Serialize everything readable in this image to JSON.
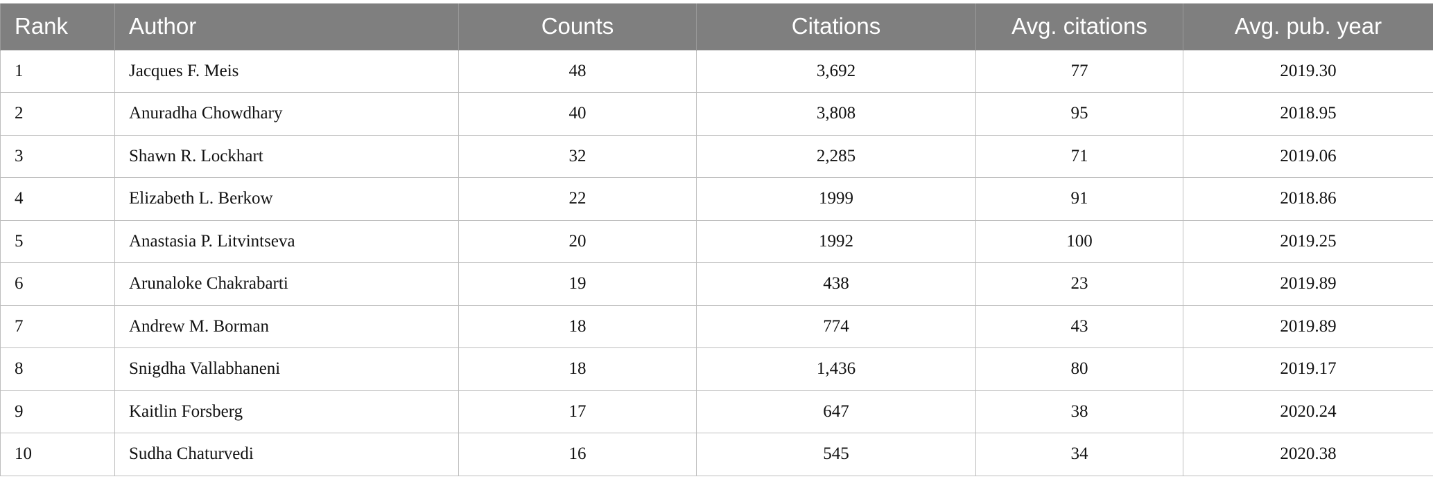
{
  "table": {
    "columns": [
      "Rank",
      "Author",
      "Counts",
      "Citations",
      "Avg. citations",
      "Avg. pub. year"
    ],
    "rows": [
      [
        "1",
        "Jacques F. Meis",
        "48",
        "3,692",
        "77",
        "2019.30"
      ],
      [
        "2",
        "Anuradha Chowdhary",
        "40",
        "3,808",
        "95",
        "2018.95"
      ],
      [
        "3",
        "Shawn R. Lockhart",
        "32",
        "2,285",
        "71",
        "2019.06"
      ],
      [
        "4",
        "Elizabeth L. Berkow",
        "22",
        "1999",
        "91",
        "2018.86"
      ],
      [
        "5",
        "Anastasia P. Litvintseva",
        "20",
        "1992",
        "100",
        "2019.25"
      ],
      [
        "6",
        "Arunaloke Chakrabarti",
        "19",
        "438",
        "23",
        "2019.89"
      ],
      [
        "7",
        "Andrew M. Borman",
        "18",
        "774",
        "43",
        "2019.89"
      ],
      [
        "8",
        "Snigdha Vallabhaneni",
        "18",
        "1,436",
        "80",
        "2019.17"
      ],
      [
        "9",
        "Kaitlin Forsberg",
        "17",
        "647",
        "38",
        "2020.24"
      ],
      [
        "10",
        "Sudha Chaturvedi",
        "16",
        "545",
        "34",
        "2020.38"
      ]
    ]
  },
  "colors": {
    "header_background": "#7f7f7f",
    "header_text": "#ffffff",
    "grid_line": "#bdbdbd"
  }
}
